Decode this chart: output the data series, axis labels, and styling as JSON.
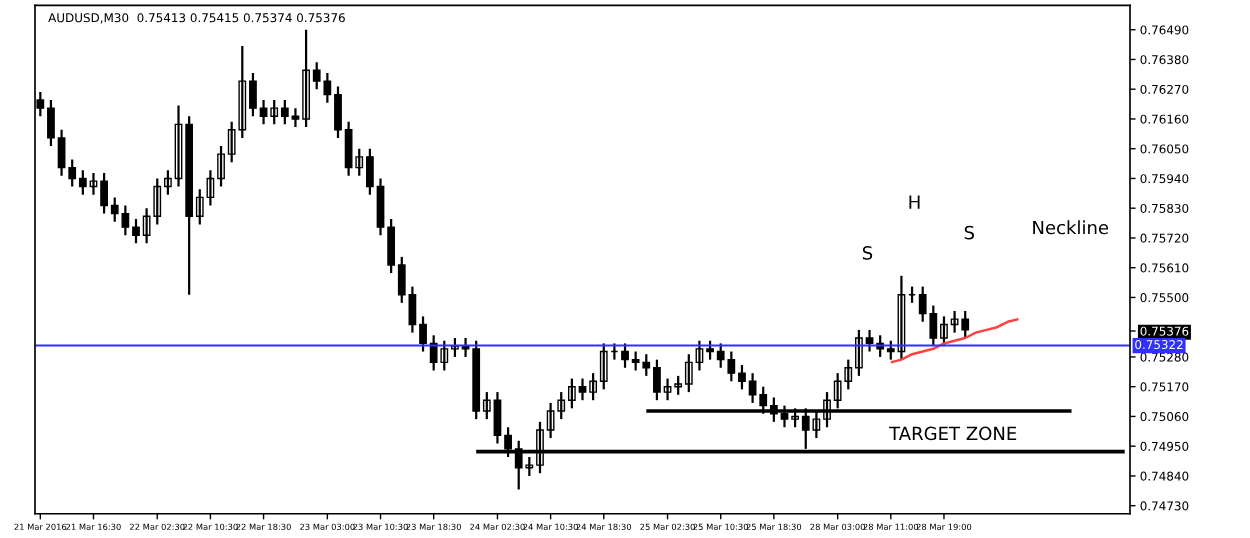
{
  "chart_data": {
    "type": "candlestick",
    "title": "AUDUSD,M30  0.75413 0.75415 0.75374 0.75376",
    "color": "#000000",
    "categories": [
      "21 Mar 2016",
      null,
      null,
      null,
      null,
      "21 Mar 16:30",
      null,
      null,
      null,
      null,
      null,
      "22 Mar 02:30",
      null,
      null,
      null,
      null,
      "22 Mar 10:30",
      null,
      null,
      null,
      null,
      "22 Mar 18:30",
      null,
      null,
      null,
      null,
      null,
      "23 Mar 03:00",
      null,
      null,
      null,
      null,
      "23 Mar 10:30",
      null,
      null,
      null,
      null,
      "23 Mar 18:30",
      null,
      null,
      null,
      null,
      null,
      "24 Mar 02:30",
      null,
      null,
      null,
      null,
      "24 Mar 10:30",
      null,
      null,
      null,
      null,
      "24 Mar 18:30",
      null,
      null,
      null,
      null,
      null,
      "25 Mar 02:30",
      null,
      null,
      null,
      null,
      "25 Mar 10:30",
      null,
      null,
      null,
      null,
      "25 Mar 18:30",
      null,
      null,
      null,
      null,
      null,
      "28 Mar 03:00",
      null,
      null,
      null,
      null,
      "28 Mar 11:00",
      null,
      null,
      null,
      null,
      "28 Mar 19:00",
      null,
      null,
      null,
      null,
      null,
      null,
      null,
      null,
      null,
      null,
      null,
      null,
      null,
      null,
      null,
      null,
      null
    ],
    "ohlc": [
      [
        0.7623,
        0.7626,
        0.7617,
        0.762
      ],
      [
        0.762,
        0.7623,
        0.7606,
        0.7609
      ],
      [
        0.7609,
        0.7612,
        0.7595,
        0.7598
      ],
      [
        0.7598,
        0.7601,
        0.7591,
        0.7594
      ],
      [
        0.7594,
        0.7597,
        0.7588,
        0.7591
      ],
      [
        0.7591,
        0.7596,
        0.7588,
        0.7593
      ],
      [
        0.7593,
        0.7596,
        0.7581,
        0.7584
      ],
      [
        0.7584,
        0.7587,
        0.7578,
        0.7581
      ],
      [
        0.7581,
        0.7584,
        0.7573,
        0.7576
      ],
      [
        0.7576,
        0.7579,
        0.757,
        0.7573
      ],
      [
        0.7573,
        0.7583,
        0.757,
        0.758
      ],
      [
        0.758,
        0.7594,
        0.7577,
        0.7591
      ],
      [
        0.7591,
        0.7597,
        0.7588,
        0.7594
      ],
      [
        0.7594,
        0.7621,
        0.7591,
        0.7614
      ],
      [
        0.7614,
        0.7617,
        0.7551,
        0.758
      ],
      [
        0.758,
        0.759,
        0.7577,
        0.7587
      ],
      [
        0.7587,
        0.7597,
        0.7584,
        0.7594
      ],
      [
        0.7594,
        0.7606,
        0.7591,
        0.7603
      ],
      [
        0.7603,
        0.7615,
        0.76,
        0.7612
      ],
      [
        0.7612,
        0.7643,
        0.7609,
        0.763
      ],
      [
        0.763,
        0.7633,
        0.7617,
        0.762
      ],
      [
        0.762,
        0.7623,
        0.7614,
        0.7617
      ],
      [
        0.7617,
        0.7623,
        0.7614,
        0.762
      ],
      [
        0.762,
        0.7623,
        0.7614,
        0.7617
      ],
      [
        0.7617,
        0.762,
        0.7613,
        0.7616
      ],
      [
        0.7616,
        0.7649,
        0.7613,
        0.7634
      ],
      [
        0.7634,
        0.7637,
        0.7627,
        0.763
      ],
      [
        0.763,
        0.7633,
        0.7622,
        0.7625
      ],
      [
        0.7625,
        0.7628,
        0.7609,
        0.7612
      ],
      [
        0.7612,
        0.7615,
        0.7595,
        0.7598
      ],
      [
        0.7598,
        0.7605,
        0.7595,
        0.7602
      ],
      [
        0.7602,
        0.7605,
        0.7588,
        0.7591
      ],
      [
        0.7591,
        0.7594,
        0.7573,
        0.7576
      ],
      [
        0.7576,
        0.7579,
        0.7559,
        0.7562
      ],
      [
        0.7562,
        0.7565,
        0.7548,
        0.7551
      ],
      [
        0.7551,
        0.7554,
        0.7537,
        0.754
      ],
      [
        0.754,
        0.7543,
        0.753,
        0.7533
      ],
      [
        0.7533,
        0.7536,
        0.7523,
        0.7526
      ],
      [
        0.7526,
        0.7534,
        0.7523,
        0.7531
      ],
      [
        0.7531,
        0.7535,
        0.7528,
        0.7532
      ],
      [
        0.7532,
        0.7535,
        0.7528,
        0.7531
      ],
      [
        0.7531,
        0.7534,
        0.7505,
        0.7508
      ],
      [
        0.7508,
        0.7515,
        0.7505,
        0.7512
      ],
      [
        0.7512,
        0.7515,
        0.7496,
        0.7499
      ],
      [
        0.7499,
        0.7502,
        0.7491,
        0.7494
      ],
      [
        0.7494,
        0.7497,
        0.7479,
        0.7487
      ],
      [
        0.7487,
        0.7491,
        0.7484,
        0.7488
      ],
      [
        0.7488,
        0.7504,
        0.7485,
        0.7501
      ],
      [
        0.7501,
        0.7511,
        0.7498,
        0.7508
      ],
      [
        0.7508,
        0.7515,
        0.7505,
        0.7512
      ],
      [
        0.7512,
        0.752,
        0.7509,
        0.7517
      ],
      [
        0.7517,
        0.752,
        0.7512,
        0.7515
      ],
      [
        0.7515,
        0.7522,
        0.7512,
        0.7519
      ],
      [
        0.7519,
        0.7533,
        0.7516,
        0.753
      ],
      [
        0.753,
        0.7533,
        0.7527,
        0.753
      ],
      [
        0.753,
        0.7533,
        0.7524,
        0.7527
      ],
      [
        0.7527,
        0.753,
        0.7523,
        0.7526
      ],
      [
        0.7526,
        0.7529,
        0.7521,
        0.7524
      ],
      [
        0.7524,
        0.7527,
        0.7512,
        0.7515
      ],
      [
        0.7515,
        0.752,
        0.7512,
        0.7517
      ],
      [
        0.7517,
        0.7521,
        0.7514,
        0.7518
      ],
      [
        0.7518,
        0.7529,
        0.7515,
        0.7526
      ],
      [
        0.7526,
        0.7534,
        0.7523,
        0.7531
      ],
      [
        0.7531,
        0.7534,
        0.7527,
        0.753
      ],
      [
        0.753,
        0.7533,
        0.7524,
        0.7527
      ],
      [
        0.7527,
        0.753,
        0.7519,
        0.7522
      ],
      [
        0.7522,
        0.7525,
        0.7516,
        0.7519
      ],
      [
        0.7519,
        0.7522,
        0.7511,
        0.7514
      ],
      [
        0.7514,
        0.7517,
        0.7507,
        0.751
      ],
      [
        0.751,
        0.7513,
        0.7504,
        0.7507
      ],
      [
        0.7507,
        0.751,
        0.7502,
        0.7505
      ],
      [
        0.7505,
        0.7509,
        0.7502,
        0.7506
      ],
      [
        0.7506,
        0.7509,
        0.7494,
        0.7501
      ],
      [
        0.7501,
        0.7508,
        0.7498,
        0.7505
      ],
      [
        0.7505,
        0.7515,
        0.7502,
        0.7512
      ],
      [
        0.7512,
        0.7522,
        0.7509,
        0.7519
      ],
      [
        0.7519,
        0.7527,
        0.7516,
        0.7524
      ],
      [
        0.7524,
        0.7538,
        0.7521,
        0.7535
      ],
      [
        0.7535,
        0.7538,
        0.753,
        0.7533
      ],
      [
        0.7533,
        0.7536,
        0.7528,
        0.7531
      ],
      [
        0.7531,
        0.7534,
        0.7527,
        0.753
      ],
      [
        0.753,
        0.7558,
        0.7527,
        0.7551
      ],
      [
        0.7551,
        0.7554,
        0.7548,
        0.7551
      ],
      [
        0.7551,
        0.7554,
        0.7541,
        0.7544
      ],
      [
        0.7544,
        0.7547,
        0.7532,
        0.7535
      ],
      [
        0.7535,
        0.7543,
        0.7532,
        0.754
      ],
      [
        0.754,
        0.7545,
        0.7537,
        0.7542
      ],
      [
        0.7542,
        0.7545,
        0.7535,
        0.7538
      ],
      null,
      null,
      null,
      null,
      null,
      null,
      null,
      null,
      null,
      null,
      null,
      null,
      null,
      null,
      null
    ],
    "series": [
      {
        "type": "line",
        "color": "#000000",
        "values": [
          null,
          null,
          null,
          null,
          null,
          null,
          null,
          null,
          null,
          null,
          null,
          null,
          null,
          null,
          null,
          null,
          null,
          null,
          null,
          null,
          null,
          null,
          null,
          null,
          null,
          null,
          null,
          null,
          null,
          null,
          null,
          null,
          null,
          null,
          null,
          null,
          null,
          null,
          null,
          null,
          null,
          null,
          null,
          null,
          null,
          null,
          null,
          null,
          null,
          null,
          null,
          null,
          null,
          null,
          null,
          null,
          null,
          0.7508,
          0.7508,
          0.7508,
          0.7508,
          0.7508,
          0.7508,
          0.7508,
          0.7508,
          0.7508,
          0.7508,
          0.7508,
          0.7508,
          0.7508,
          0.7508,
          0.7508,
          0.7508,
          0.7508,
          0.7508,
          0.7508,
          0.7508,
          0.7508,
          0.7508,
          0.7508,
          0.7508,
          0.7508,
          0.7508,
          0.7508,
          0.7508,
          0.7508,
          0.7508,
          0.7508,
          0.7508,
          0.7508,
          0.7508,
          0.7508,
          0.7508,
          0.7508,
          0.7508,
          0.7508,
          0.7508,
          0.7508,
          null,
          null,
          null,
          null,
          null
        ]
      },
      {
        "type": "line",
        "color": "#000000",
        "values": [
          null,
          null,
          null,
          null,
          null,
          null,
          null,
          null,
          null,
          null,
          null,
          null,
          null,
          null,
          null,
          null,
          null,
          null,
          null,
          null,
          null,
          null,
          null,
          null,
          null,
          null,
          null,
          null,
          null,
          null,
          null,
          null,
          null,
          null,
          null,
          null,
          null,
          null,
          null,
          null,
          null,
          0.7493,
          0.7493,
          0.7493,
          0.7493,
          0.7493,
          0.7493,
          0.7493,
          0.7493,
          0.7493,
          0.7493,
          0.7493,
          0.7493,
          0.7493,
          0.7493,
          0.7493,
          0.7493,
          0.7493,
          0.7493,
          0.7493,
          0.7493,
          0.7493,
          0.7493,
          0.7493,
          0.7493,
          0.7493,
          0.7493,
          0.7493,
          0.7493,
          0.7493,
          0.7493,
          0.7493,
          0.7493,
          0.7493,
          0.7493,
          0.7493,
          0.7493,
          0.7493,
          0.7493,
          0.7493,
          0.7493,
          0.7493,
          0.7493,
          0.7493,
          0.7493,
          0.7493,
          0.7493,
          0.7493,
          0.7493,
          0.7493,
          0.7493,
          0.7493,
          0.7493,
          0.7493,
          0.7493,
          0.7493,
          0.7493,
          0.7493,
          0.7493,
          0.7493,
          0.7493,
          0.7493,
          0.7493
        ]
      },
      {
        "type": "line",
        "color": "#ff4040",
        "values": [
          null,
          null,
          null,
          null,
          null,
          null,
          null,
          null,
          null,
          null,
          null,
          null,
          null,
          null,
          null,
          null,
          null,
          null,
          null,
          null,
          null,
          null,
          null,
          null,
          null,
          null,
          null,
          null,
          null,
          null,
          null,
          null,
          null,
          null,
          null,
          null,
          null,
          null,
          null,
          null,
          null,
          null,
          null,
          null,
          null,
          null,
          null,
          null,
          null,
          null,
          null,
          null,
          null,
          null,
          null,
          null,
          null,
          null,
          null,
          null,
          null,
          null,
          null,
          null,
          null,
          null,
          null,
          null,
          null,
          null,
          null,
          null,
          null,
          null,
          null,
          null,
          null,
          null,
          null,
          null,
          0.7526,
          0.7527,
          0.7529,
          0.753,
          0.7531,
          0.7533,
          0.7534,
          0.7535,
          0.7537,
          0.7538,
          0.7539,
          0.7541,
          0.7542,
          null,
          null,
          null,
          null,
          null,
          null,
          null,
          null,
          null,
          null
        ]
      }
    ],
    "ref_lines": [
      {
        "axis": "y",
        "value": 0.75322,
        "label": "0.75322",
        "color": "#3030ff"
      }
    ],
    "annotations": [
      "S",
      "H",
      "S",
      "Neckline",
      "TARGET ZONE"
    ],
    "ylim": [
      0.747,
      0.7658
    ],
    "yticks": [
      {
        "value": 0.7473,
        "label": "0.74730"
      },
      {
        "value": 0.7484,
        "label": "0.74840"
      },
      {
        "value": 0.7495,
        "label": "0.74950"
      },
      {
        "value": 0.7506,
        "label": "0.75060"
      },
      {
        "value": 0.7517,
        "label": "0.75170"
      },
      {
        "value": 0.7528,
        "label": "0.75280"
      },
      0.75376,
      {
        "value": 0.755,
        "label": "0.75500"
      },
      {
        "value": 0.7561,
        "label": "0.75610"
      },
      {
        "value": 0.7572,
        "label": "0.75720"
      },
      {
        "value": 0.7583,
        "label": "0.75830"
      },
      {
        "value": 0.7594,
        "label": "0.75940"
      },
      {
        "value": 0.7605,
        "label": "0.76050"
      },
      {
        "value": 0.7616,
        "label": "0.76160"
      },
      {
        "value": 0.7627,
        "label": "0.76270"
      },
      {
        "value": 0.7638,
        "label": "0.76380"
      },
      {
        "value": 0.7649,
        "label": "0.76490"
      }
    ]
  }
}
